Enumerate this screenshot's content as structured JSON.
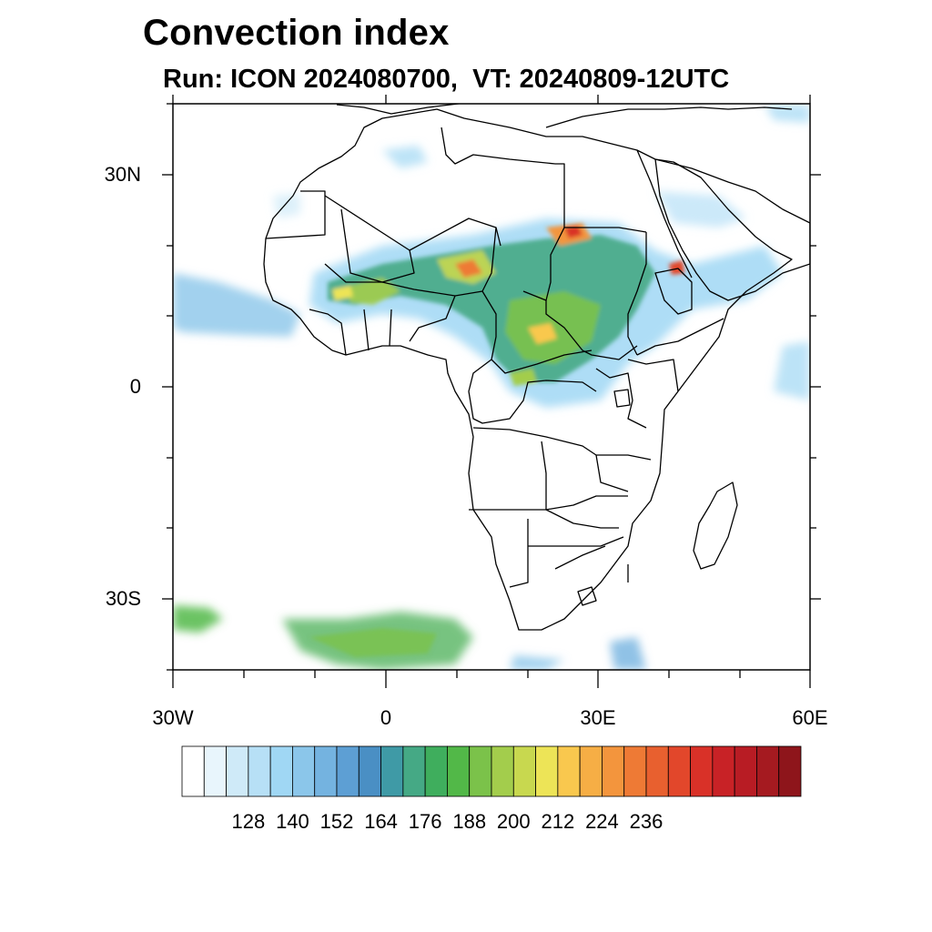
{
  "title": "Convection index",
  "subtitle": "Run: ICON 2024080700,  VT: 20240809-12UTC",
  "axes": {
    "lat_labels": [
      "30N",
      "0",
      "30S"
    ],
    "lon_labels": [
      "30W",
      "0",
      "30E",
      "60E"
    ]
  },
  "colorbar": {
    "labels": [
      "128",
      "140",
      "152",
      "164",
      "176",
      "188",
      "200",
      "212",
      "224",
      "236"
    ],
    "colors": [
      "#ffffff",
      "#e8f5fc",
      "#cfeaf8",
      "#b7e0f6",
      "#a0d7f4",
      "#8bc6ea",
      "#74b3e0",
      "#5d9fd4",
      "#4a8fc4",
      "#3f9aa6",
      "#45a985",
      "#3fae5d",
      "#52b848",
      "#7bc24a",
      "#a3cd4c",
      "#c8d84f",
      "#ede457",
      "#f9c84e",
      "#f6ae45",
      "#f3953d",
      "#ee7a35",
      "#e8602f",
      "#e2472b",
      "#d93128",
      "#c82226",
      "#b81c24",
      "#a51a20",
      "#8e151b"
    ]
  }
}
